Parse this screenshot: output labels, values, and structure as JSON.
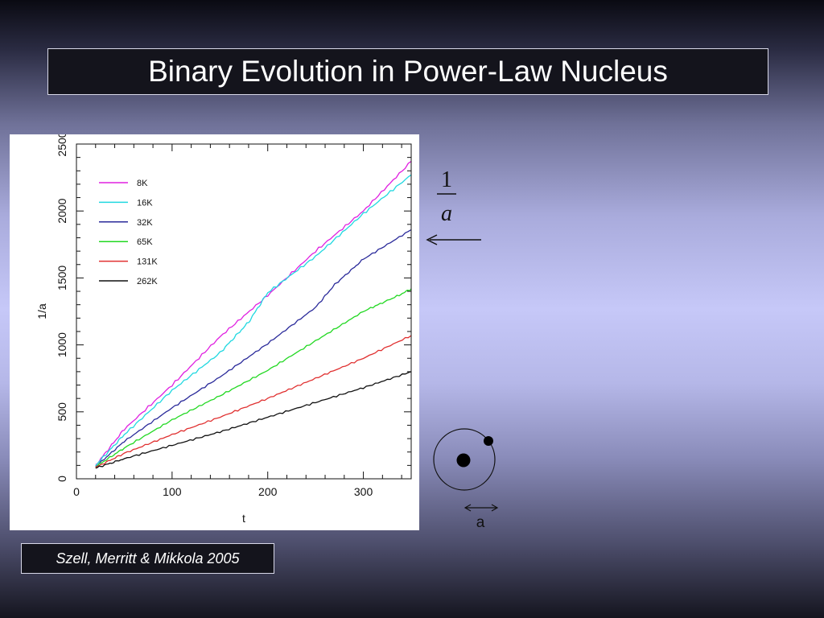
{
  "slide": {
    "title": "Binary Evolution in Power-Law Nucleus",
    "citation": "Szell, Merritt & Mikkola 2005",
    "formula_numerator": "1",
    "formula_denominator": "a",
    "orbit_label": "a"
  },
  "chart_data": {
    "type": "line",
    "xlabel": "t",
    "ylabel": "1/a",
    "xlim": [
      0,
      350
    ],
    "ylim": [
      0,
      2500
    ],
    "xticks": [
      0,
      100,
      200,
      300
    ],
    "yticks": [
      0,
      500,
      1000,
      1500,
      2000,
      2500
    ],
    "legend_position": "top-left",
    "series": [
      {
        "name": "8K",
        "color": "#e020e0",
        "x": [
          20,
          50,
          100,
          150,
          200,
          250,
          300,
          350
        ],
        "y": [
          100,
          370,
          700,
          1060,
          1370,
          1700,
          2000,
          2370
        ]
      },
      {
        "name": "16K",
        "color": "#20d8e0",
        "x": [
          20,
          50,
          100,
          150,
          180,
          200,
          250,
          300,
          350
        ],
        "y": [
          100,
          330,
          660,
          940,
          1170,
          1390,
          1660,
          1980,
          2270
        ]
      },
      {
        "name": "32K",
        "color": "#2a2a9a",
        "x": [
          20,
          50,
          100,
          150,
          200,
          250,
          270,
          300,
          350
        ],
        "y": [
          90,
          280,
          530,
          760,
          1010,
          1280,
          1450,
          1640,
          1860
        ]
      },
      {
        "name": "65K",
        "color": "#22d822",
        "x": [
          20,
          50,
          100,
          150,
          200,
          250,
          300,
          340,
          350
        ],
        "y": [
          90,
          230,
          440,
          620,
          810,
          1030,
          1250,
          1380,
          1420
        ]
      },
      {
        "name": "131K",
        "color": "#e03030",
        "x": [
          20,
          50,
          100,
          150,
          200,
          250,
          300,
          350
        ],
        "y": [
          85,
          190,
          330,
          460,
          600,
          750,
          900,
          1070
        ]
      },
      {
        "name": "262K",
        "color": "#111111",
        "x": [
          20,
          50,
          100,
          150,
          200,
          250,
          300,
          350
        ],
        "y": [
          80,
          150,
          250,
          350,
          460,
          570,
          680,
          800
        ]
      }
    ]
  }
}
